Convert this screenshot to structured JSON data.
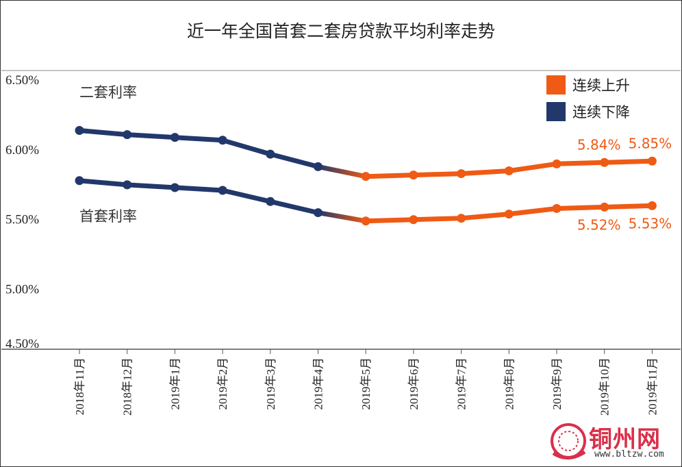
{
  "colors": {
    "rising": "#EF5A14",
    "falling": "#22386B",
    "axis": "#888888"
  },
  "legend": [
    {
      "label": "连续上升",
      "color": "#EF5A14"
    },
    {
      "label": "连续下降",
      "color": "#22386B"
    }
  ],
  "watermark": {
    "name": "铜州网",
    "url": "www.bltzw.com"
  },
  "chart_data": {
    "type": "line",
    "title": "近一年全国首套二套房贷款平均利率走势",
    "xlabel": "",
    "ylabel": "",
    "ylim": [
      4.5,
      6.5
    ],
    "yticks": [
      "6.50%",
      "6.00%",
      "5.50%",
      "5.00%",
      "4.50%"
    ],
    "ytick_values": [
      6.5,
      6.0,
      5.5,
      5.0,
      4.5
    ],
    "categories": [
      "2018年11月",
      "2018年12月",
      "2019年1月",
      "2019年2月",
      "2019年3月",
      "2019年4月",
      "2019年5月",
      "2019年6月",
      "2019年7月",
      "2019年8月",
      "2019年9月",
      "2019年10月",
      "2019年11月"
    ],
    "color_switch_index": 6,
    "series": [
      {
        "name": "二套利率",
        "values": [
          6.07,
          6.04,
          6.02,
          6.0,
          5.9,
          5.81,
          5.74,
          5.75,
          5.76,
          5.78,
          5.83,
          5.84,
          5.85
        ],
        "data_labels": [
          "5.84%",
          "5.85%"
        ],
        "data_label_indices": [
          11,
          12
        ]
      },
      {
        "name": "首套利率",
        "values": [
          5.71,
          5.68,
          5.66,
          5.64,
          5.56,
          5.48,
          5.42,
          5.43,
          5.44,
          5.47,
          5.51,
          5.52,
          5.53
        ],
        "data_labels": [
          "5.52%",
          "5.53%"
        ],
        "data_label_indices": [
          11,
          12
        ]
      }
    ],
    "grid": false,
    "legend_position": "top-right"
  }
}
